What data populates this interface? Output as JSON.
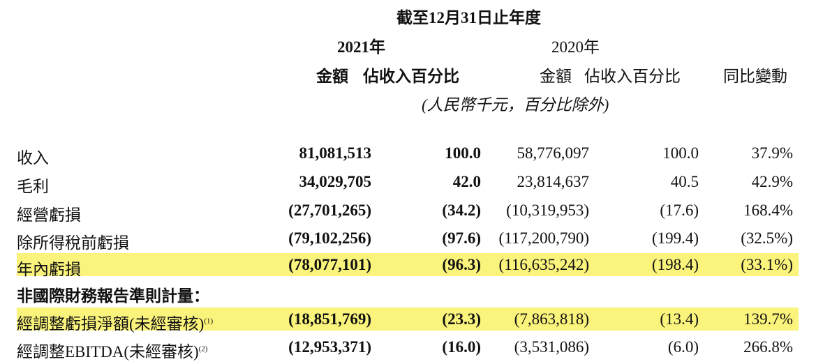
{
  "header": {
    "period": "截至12月31日止年度",
    "year_2021": "2021年",
    "year_2020": "2020年",
    "col_amount_2021": "金額",
    "col_pct_2021": "佔收入百分比",
    "col_amount_2020": "金額",
    "col_pct_2020": "佔收入百分比",
    "col_yoy": "同比變動",
    "unit_note": "(人民幣千元，百分比除外)"
  },
  "rows": [
    {
      "label": "收入",
      "amt2021": "81,081,513",
      "pct2021": "100.0",
      "amt2020": "58,776,097",
      "pct2020": "100.0",
      "yoy": "37.9%"
    },
    {
      "label": "毛利",
      "amt2021": "34,029,705",
      "pct2021": "42.0",
      "amt2020": "23,814,637",
      "pct2020": "40.5",
      "yoy": "42.9%"
    },
    {
      "label": "經營虧損",
      "amt2021": "(27,701,265)",
      "pct2021": "(34.2)",
      "amt2020": "(10,319,953)",
      "pct2020": "(17.6)",
      "yoy": "168.4%"
    },
    {
      "label": "除所得稅前虧損",
      "amt2021": "(79,102,256)",
      "pct2021": "(97.6)",
      "amt2020": "(117,200,790)",
      "pct2020": "(199.4)",
      "yoy": "(32.5%)"
    },
    {
      "label": "年內虧損",
      "amt2021": "(78,077,101)",
      "pct2021": "(96.3)",
      "amt2020": "(116,635,242)",
      "pct2020": "(198.4)",
      "yoy": "(33.1%)"
    }
  ],
  "non_ifrs_title": "非國際財務報告準則計量：",
  "non_ifrs_rows": [
    {
      "label": "經調整虧損淨額(未經審核)",
      "note": "(1)",
      "amt2021": "(18,851,769)",
      "pct2021": "(23.3)",
      "amt2020": "(7,863,818)",
      "pct2020": "(13.4)",
      "yoy": "139.7%"
    },
    {
      "label": "經調整EBITDA(未經審核)",
      "note": "(2)",
      "amt2021": "(12,953,371)",
      "pct2021": "(16.0)",
      "amt2020": "(3,531,086)",
      "pct2020": "(6.0)",
      "yoy": "266.8%"
    }
  ]
}
